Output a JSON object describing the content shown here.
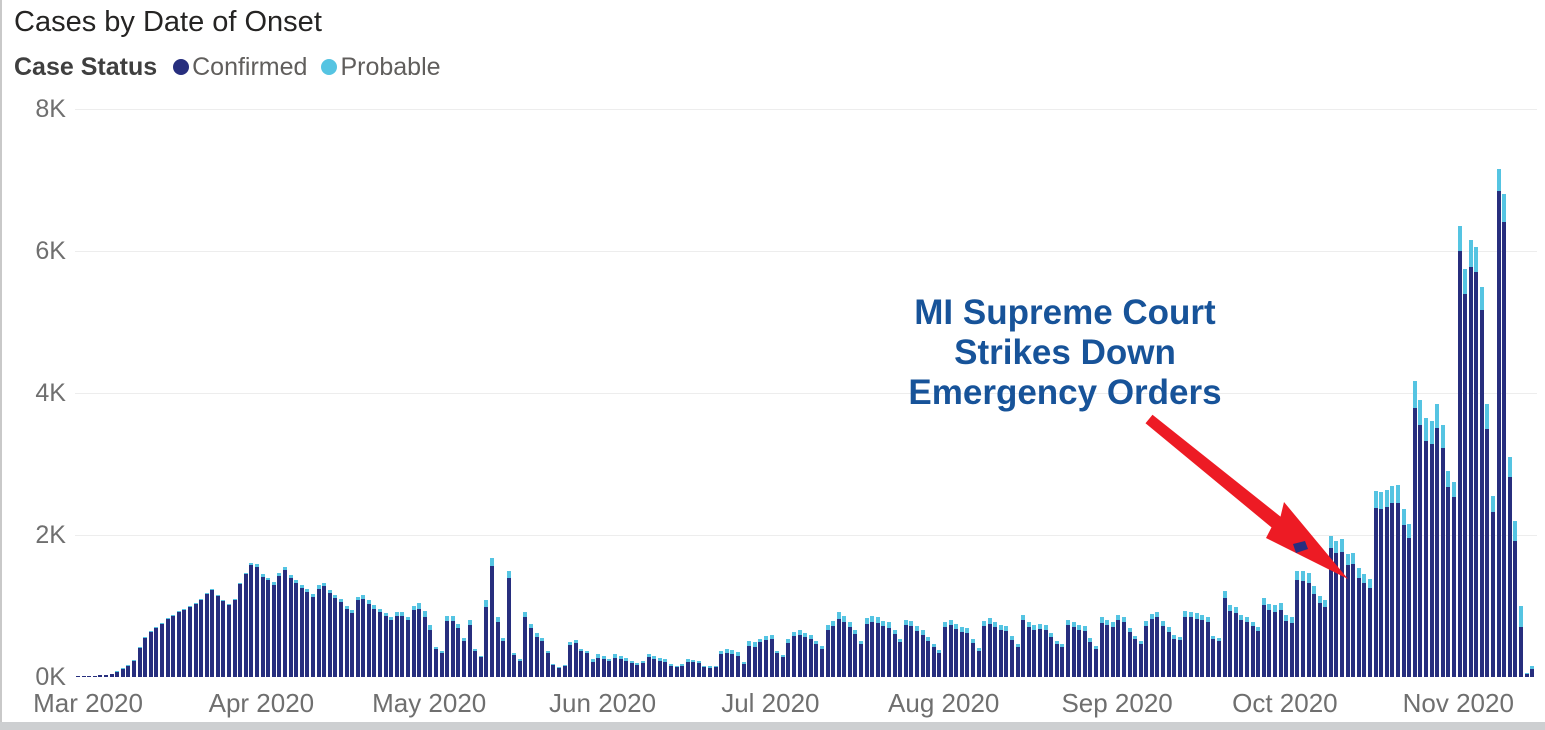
{
  "title": "Cases by Date of Onset",
  "legend": {
    "label": "Case Status",
    "items": [
      {
        "label": "Confirmed",
        "color": "#272e7e"
      },
      {
        "label": "Probable",
        "color": "#55c4e2"
      }
    ]
  },
  "annotation": {
    "line1": "MI Supreme Court",
    "line2": "Strikes Down",
    "line3": "Emergency Orders",
    "text_color": "#175399",
    "arrow_color": "#ed1b24"
  },
  "y_axis": {
    "tick_labels": [
      "0K",
      "2K",
      "4K",
      "6K",
      "8K"
    ],
    "max": 8000
  },
  "x_axis": {
    "tick_labels": [
      "Mar 2020",
      "Apr 2020",
      "May 2020",
      "Jun 2020",
      "Jul 2020",
      "Aug 2020",
      "Sep 2020",
      "Oct 2020",
      "Nov 2020"
    ]
  },
  "chart_data": {
    "type": "bar",
    "stacked": true,
    "title": "Cases by Date of Onset",
    "xlabel": "",
    "ylabel": "",
    "ylim": [
      0,
      8000
    ],
    "grid": true,
    "legend_position": "top-left",
    "series_names": [
      "Confirmed",
      "Probable"
    ],
    "series_colors": {
      "Confirmed": "#272e7e",
      "Probable": "#55c4e2"
    },
    "start_date": "2020-03-01",
    "end_date": "2020-11-16",
    "months": [
      {
        "month": "2020-03",
        "days": 31,
        "confirmed": [
          8,
          10,
          14,
          18,
          25,
          35,
          50,
          74,
          109,
          158,
          228,
          416,
          545,
          634,
          693,
          752,
          812,
          861,
          911,
          950,
          990,
          1030,
          1089,
          1168,
          1228,
          1138,
          1069,
          1010,
          1089,
          1307,
          1445
        ],
        "probable": [
          0,
          0,
          0,
          0,
          0,
          0,
          0,
          1,
          1,
          2,
          2,
          4,
          5,
          6,
          7,
          8,
          8,
          9,
          9,
          10,
          10,
          10,
          11,
          12,
          12,
          12,
          11,
          10,
          11,
          13,
          15
        ]
      },
      {
        "month": "2020-04",
        "days": 30,
        "confirmed": [
          1575,
          1552,
          1414,
          1362,
          1302,
          1418,
          1503,
          1395,
          1326,
          1257,
          1198,
          1129,
          1243,
          1280,
          1182,
          1114,
          1055,
          958,
          909,
          1080,
          1098,
          1030,
          962,
          913,
          855,
          806,
          862,
          861,
          798,
          943
        ],
        "probable": [
          35,
          38,
          36,
          38,
          38,
          42,
          47,
          45,
          44,
          43,
          42,
          41,
          47,
          50,
          48,
          46,
          45,
          42,
          41,
          50,
          52,
          50,
          48,
          47,
          45,
          44,
          48,
          49,
          47,
          57
        ]
      },
      {
        "month": "2020-05",
        "days": 31,
        "confirmed": [
          955,
          850,
          668,
          390,
          344,
          790,
          788,
          686,
          505,
          732,
          360,
          278,
          990,
          1560,
          770,
          505,
          1390,
          315,
          232,
          840,
          684,
          565,
          502,
          340,
          176,
          130,
          157,
          456,
          474,
          364,
          337
        ],
        "probable": [
          85,
          80,
          62,
          30,
          26,
          70,
          72,
          64,
          45,
          68,
          30,
          22,
          90,
          120,
          70,
          45,
          110,
          25,
          18,
          80,
          66,
          55,
          48,
          30,
          14,
          10,
          13,
          44,
          46,
          36,
          33
        ]
      },
      {
        "month": "2020-06",
        "days": 30,
        "confirmed": [
          215,
          275,
          258,
          224,
          275,
          250,
          232,
          198,
          172,
          198,
          284,
          258,
          232,
          215,
          155,
          138,
          155,
          215,
          206,
          194,
          138,
          134,
          138,
          318,
          344,
          327,
          301,
          181,
          440,
          422
        ],
        "probable": [
          35,
          45,
          42,
          36,
          45,
          40,
          38,
          32,
          28,
          32,
          46,
          42,
          38,
          35,
          25,
          22,
          25,
          35,
          34,
          31,
          22,
          21,
          22,
          52,
          56,
          53,
          49,
          29,
          70,
          68
        ]
      },
      {
        "month": "2020-07",
        "days": 31,
        "confirmed": [
          488,
          524,
          533,
          334,
          280,
          480,
          578,
          596,
          560,
          533,
          461,
          398,
          660,
          714,
          822,
          777,
          705,
          606,
          461,
          750,
          777,
          759,
          714,
          696,
          606,
          488,
          732,
          714,
          651,
          597,
          506
        ],
        "probable": [
          52,
          56,
          57,
          36,
          30,
          50,
          62,
          64,
          60,
          57,
          49,
          42,
          70,
          76,
          88,
          83,
          75,
          64,
          49,
          80,
          83,
          81,
          76,
          74,
          64,
          52,
          78,
          76,
          69,
          63,
          54
        ]
      },
      {
        "month": "2020-08",
        "days": 31,
        "confirmed": [
          418,
          345,
          700,
          727,
          673,
          636,
          627,
          482,
          373,
          718,
          754,
          700,
          664,
          654,
          527,
          418,
          800,
          700,
          664,
          682,
          664,
          564,
          464,
          418,
          727,
          709,
          664,
          655,
          500,
          400,
          764
        ],
        "probable": [
          42,
          35,
          70,
          73,
          67,
          64,
          63,
          48,
          37,
          72,
          76,
          70,
          66,
          66,
          53,
          42,
          80,
          70,
          66,
          68,
          66,
          56,
          46,
          42,
          73,
          71,
          66,
          65,
          50,
          40,
          76
        ]
      },
      {
        "month": "2020-09",
        "days": 30,
        "confirmed": [
          732,
          705,
          805,
          769,
          631,
          531,
          467,
          723,
          814,
          842,
          723,
          640,
          540,
          522,
          851,
          842,
          823,
          805,
          769,
          531,
          503,
          1107,
          924,
          906,
          805,
          769,
          714,
          650,
          1016,
          942
        ],
        "probable": [
          68,
          65,
          75,
          71,
          59,
          49,
          43,
          67,
          76,
          78,
          67,
          60,
          50,
          48,
          79,
          78,
          77,
          75,
          71,
          49,
          47,
          103,
          86,
          84,
          75,
          71,
          66,
          60,
          94,
          88
        ]
      },
      {
        "month": "2020-10",
        "days": 31,
        "confirmed": [
          919,
          946,
          792,
          764,
          1365,
          1356,
          1329,
          1165,
          1037,
          992,
          1811,
          1747,
          1765,
          1574,
          1592,
          1401,
          1319,
          1256,
          2384,
          2366,
          2402,
          2448,
          2457,
          2148,
          1956,
          3795,
          3549,
          3321,
          3276,
          3503,
          3230
        ],
        "probable": [
          91,
          94,
          78,
          76,
          135,
          134,
          131,
          115,
          103,
          98,
          179,
          173,
          175,
          156,
          158,
          139,
          131,
          124,
          236,
          234,
          238,
          242,
          243,
          212,
          194,
          375,
          351,
          329,
          324,
          347,
          320
        ]
      },
      {
        "month": "2020-11",
        "days": 16,
        "confirmed": [
          2670,
          2530,
          6000,
          5390,
          5770,
          5700,
          5170,
          3500,
          2320,
          6850,
          6410,
          2820,
          1920,
          700,
          50,
          110
        ],
        "probable": [
          230,
          220,
          350,
          360,
          380,
          350,
          330,
          350,
          230,
          300,
          390,
          280,
          280,
          300,
          10,
          40
        ]
      }
    ]
  }
}
